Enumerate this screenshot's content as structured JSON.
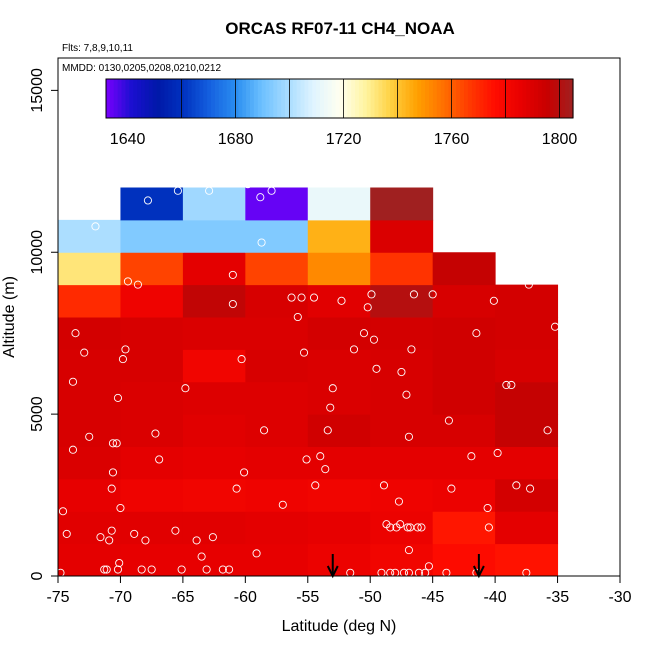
{
  "chart_data": {
    "type": "heatmap",
    "title": "ORCAS RF07-11 CH4_NOAA",
    "flights_note": "Flts: 7,8,9,10,11",
    "dates_note": "MMDD: 0130,0205,0208,0210,0212",
    "xlabel": "Latitude (deg N)",
    "ylabel": "Altitude (m)",
    "xlim": [
      -75,
      -30
    ],
    "ylim": [
      0,
      16000
    ],
    "x_ticks": [
      -75,
      -70,
      -65,
      -60,
      -55,
      -50,
      -45,
      -40,
      -35,
      -30
    ],
    "x_tick_labels": [
      "-75",
      "-70",
      "-65",
      "-60",
      "-55",
      "-50",
      "-45",
      "-40",
      "-35",
      "-30"
    ],
    "y_ticks": [
      0,
      5000,
      10000,
      15000
    ],
    "y_tick_labels": [
      "0",
      "5000",
      "10000",
      "15000"
    ],
    "colorbar": {
      "min": 1632,
      "max": 1805,
      "ticks": [
        1640,
        1680,
        1720,
        1760,
        1800
      ],
      "tick_labels": [
        "1640",
        "1680",
        "1720",
        "1760",
        "1800"
      ],
      "palette": [
        "#7a00ff",
        "#1a0fd0",
        "#0018a8",
        "#0033c0",
        "#1560e0",
        "#2a8ef0",
        "#6cc0ff",
        "#a8dcff",
        "#e0f4ff",
        "#fffff0",
        "#fff4a0",
        "#ffd040",
        "#ffa000",
        "#ff7000",
        "#ff3a00",
        "#ff0c00",
        "#e80000",
        "#c80000",
        "#a02020"
      ]
    },
    "x_edges": [
      -75,
      -70,
      -65,
      -60,
      -55,
      -50,
      -45,
      -40,
      -35
    ],
    "y_edges": [
      0,
      1000,
      2000,
      3000,
      4000,
      5000,
      6000,
      7000,
      8000,
      9000,
      10000,
      11000,
      12000
    ],
    "cells": [
      [
        1787,
        1786,
        1786,
        1786,
        1784,
        1782,
        1777,
        1775
      ],
      [
        1788,
        1788,
        1788,
        1787,
        1786,
        1784,
        1774,
        1787
      ],
      [
        1786,
        1783,
        1782,
        1783,
        1782,
        1783,
        1784,
        1792
      ],
      [
        1790,
        1787,
        1786,
        1787,
        1787,
        1787,
        1787,
        1787
      ],
      [
        1791,
        1790,
        1788,
        1789,
        1793,
        1791,
        1791,
        1796
      ],
      [
        1791,
        1790,
        1789,
        1789,
        1790,
        1791,
        1793,
        1796
      ],
      [
        1791,
        1791,
        1782,
        1791,
        1790,
        1791,
        1793,
        1791
      ],
      [
        1792,
        1791,
        1790,
        1790,
        1792,
        1792,
        1793,
        1792
      ],
      [
        1770,
        1783,
        1797,
        1791,
        1788,
        1800,
        1791,
        1792
      ],
      [
        1732,
        1765,
        1787,
        1765,
        1752,
        1768,
        1796,
        null
      ],
      [
        1700,
        1693,
        1693,
        1693,
        1744,
        1790,
        null,
        null
      ],
      [
        null,
        1660,
        1698,
        1634,
        1712,
        1805,
        null,
        null
      ]
    ],
    "points": [
      [
        -74.8,
        100
      ],
      [
        -74.6,
        2000
      ],
      [
        -74.3,
        1300
      ],
      [
        -73.8,
        3900
      ],
      [
        -73.6,
        7500
      ],
      [
        -73.8,
        6000
      ],
      [
        -72.9,
        6900
      ],
      [
        -72.5,
        4300
      ],
      [
        -72.0,
        10800
      ],
      [
        -71.6,
        1200
      ],
      [
        -71.3,
        200
      ],
      [
        -71.1,
        200
      ],
      [
        -70.9,
        1100
      ],
      [
        -70.7,
        1400
      ],
      [
        -70.7,
        2700
      ],
      [
        -70.6,
        3200
      ],
      [
        -70.6,
        4100
      ],
      [
        -70.3,
        4100
      ],
      [
        -70.2,
        200
      ],
      [
        -70.1,
        400
      ],
      [
        -70.0,
        2100
      ],
      [
        -70.2,
        5500
      ],
      [
        -69.8,
        6700
      ],
      [
        -69.6,
        7000
      ],
      [
        -69.4,
        9100
      ],
      [
        -68.9,
        1300
      ],
      [
        -68.6,
        9000
      ],
      [
        -68.3,
        200
      ],
      [
        -68.0,
        1100
      ],
      [
        -67.8,
        11600
      ],
      [
        -67.5,
        200
      ],
      [
        -67.2,
        4400
      ],
      [
        -66.9,
        3600
      ],
      [
        -65.6,
        1400
      ],
      [
        -65.4,
        11900
      ],
      [
        -65.1,
        200
      ],
      [
        -64.8,
        5800
      ],
      [
        -63.9,
        1100
      ],
      [
        -63.5,
        600
      ],
      [
        -63.1,
        200
      ],
      [
        -62.9,
        11900
      ],
      [
        -62.6,
        1200
      ],
      [
        -61.8,
        200
      ],
      [
        -61.3,
        200
      ],
      [
        -61.0,
        8400
      ],
      [
        -61.0,
        9300
      ],
      [
        -60.7,
        2700
      ],
      [
        -60.3,
        6700
      ],
      [
        -60.1,
        3200
      ],
      [
        -59.8,
        12100
      ],
      [
        -59.1,
        700
      ],
      [
        -58.8,
        11700
      ],
      [
        -58.7,
        10300
      ],
      [
        -58.5,
        4500
      ],
      [
        -57.9,
        11900
      ],
      [
        -57.0,
        2200
      ],
      [
        -56.3,
        8600
      ],
      [
        -55.8,
        8000
      ],
      [
        -55.5,
        8600
      ],
      [
        -55.1,
        3600
      ],
      [
        -55.3,
        6900
      ],
      [
        -54.5,
        8600
      ],
      [
        -54.4,
        2800
      ],
      [
        -54.0,
        3700
      ],
      [
        -53.6,
        3300
      ],
      [
        -53.4,
        4500
      ],
      [
        -53.2,
        5200
      ],
      [
        -53.0,
        5800
      ],
      [
        -52.3,
        8500
      ],
      [
        -51.6,
        100
      ],
      [
        -51.3,
        7000
      ],
      [
        -50.5,
        7500
      ],
      [
        -50.2,
        8300
      ],
      [
        -49.9,
        8700
      ],
      [
        -49.7,
        7300
      ],
      [
        -49.5,
        6400
      ],
      [
        -49.1,
        100
      ],
      [
        -48.9,
        2800
      ],
      [
        -48.7,
        1600
      ],
      [
        -48.4,
        100
      ],
      [
        -48.4,
        1500
      ],
      [
        -48.0,
        100
      ],
      [
        -47.9,
        1500
      ],
      [
        -47.7,
        2300
      ],
      [
        -47.6,
        1600
      ],
      [
        -47.5,
        6300
      ],
      [
        -47.3,
        100
      ],
      [
        -47.1,
        5600
      ],
      [
        -47.0,
        1500
      ],
      [
        -46.9,
        100
      ],
      [
        -46.9,
        800
      ],
      [
        -46.9,
        4300
      ],
      [
        -46.8,
        1500
      ],
      [
        -46.7,
        7000
      ],
      [
        -46.5,
        8700
      ],
      [
        -46.2,
        1500
      ],
      [
        -46.1,
        100
      ],
      [
        -45.9,
        1500
      ],
      [
        -45.6,
        100
      ],
      [
        -45.3,
        300
      ],
      [
        -45.0,
        8700
      ],
      [
        -43.9,
        100
      ],
      [
        -43.7,
        4800
      ],
      [
        -43.5,
        2700
      ],
      [
        -41.9,
        3700
      ],
      [
        -41.5,
        7500
      ],
      [
        -41.5,
        100
      ],
      [
        -40.6,
        2100
      ],
      [
        -40.5,
        1500
      ],
      [
        -40.1,
        8500
      ],
      [
        -39.8,
        3800
      ],
      [
        -39.1,
        5900
      ],
      [
        -38.7,
        5900
      ],
      [
        -38.3,
        2800
      ],
      [
        -37.5,
        100
      ],
      [
        -37.3,
        9000
      ],
      [
        -37.2,
        2700
      ],
      [
        -35.8,
        4500
      ],
      [
        -35.2,
        7700
      ]
    ],
    "arrows_at_latitude": [
      -53,
      -41.3
    ]
  }
}
